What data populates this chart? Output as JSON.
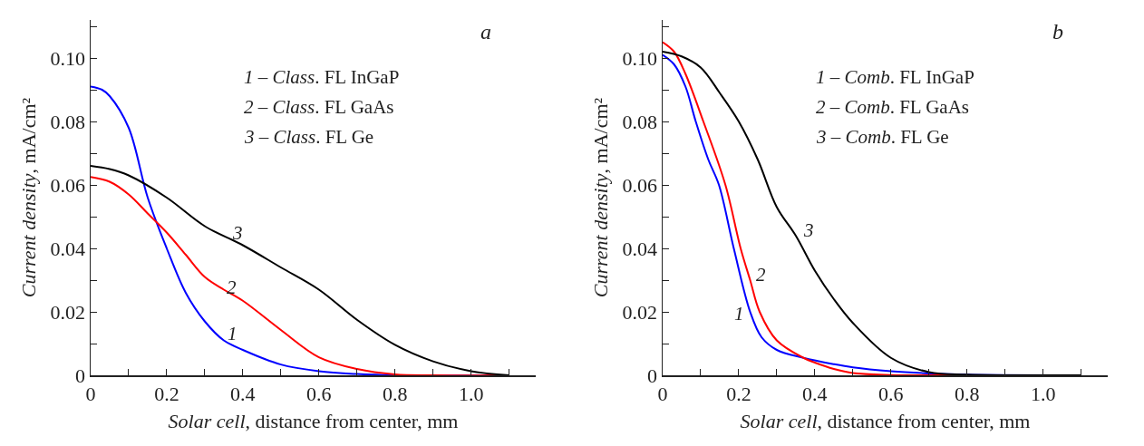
{
  "chart_data": [
    {
      "type": "line",
      "title": "a",
      "xlabel": "Solar cell, distance from center, mm",
      "ylabel": "Current density, mA/cm²",
      "xlim": [
        0,
        1.17
      ],
      "ylim": [
        0,
        0.112
      ],
      "xticks": [
        0,
        {
          "value": 0.1,
          "label": null
        },
        0.2,
        {
          "value": 0.3,
          "label": null
        },
        0.4,
        {
          "value": 0.5,
          "label": null
        },
        0.6,
        {
          "value": 0.7,
          "label": null
        },
        0.8,
        {
          "value": 0.9,
          "label": null
        },
        {
          "value": 1,
          "label": "1.0"
        },
        {
          "value": 1.1,
          "label": null
        }
      ],
      "yticks": [
        0,
        {
          "value": 0.01,
          "label": null
        },
        0.02,
        {
          "value": 0.03,
          "label": null
        },
        0.04,
        {
          "value": 0.05,
          "label": null
        },
        0.06,
        {
          "value": 0.07,
          "label": null
        },
        0.08,
        {
          "value": 0.09,
          "label": null
        },
        {
          "value": 0.1,
          "label": "0.10"
        },
        {
          "value": 0.11,
          "label": null
        }
      ],
      "grid": false,
      "marker": "none",
      "line_style": "solid",
      "series": [
        {
          "color": "#0000ff",
          "x": [
            0,
            0.03,
            0.05,
            0.1,
            0.15,
            0.2,
            0.25,
            0.3,
            0.35,
            0.4,
            0.5,
            0.6,
            0.7,
            0.8,
            1.1
          ],
          "values": [
            0.091,
            0.09,
            0.088,
            0.078,
            0.056,
            0.04,
            0.026,
            0.017,
            0.011,
            0.008,
            0.0034,
            0.0013,
            0.0004,
            0,
            0
          ]
        },
        {
          "color": "#ff0000",
          "x": [
            0,
            0.05,
            0.1,
            0.15,
            0.2,
            0.25,
            0.3,
            0.35,
            0.4,
            0.5,
            0.6,
            0.7,
            0.8,
            0.9,
            1.1
          ],
          "values": [
            0.0625,
            0.061,
            0.057,
            0.051,
            0.045,
            0.038,
            0.031,
            0.027,
            0.0235,
            0.0143,
            0.0057,
            0.002,
            0.0003,
            0,
            0
          ]
        },
        {
          "color": "#000000",
          "x": [
            0,
            0.05,
            0.1,
            0.2,
            0.3,
            0.4,
            0.5,
            0.6,
            0.7,
            0.8,
            0.9,
            1.0,
            1.1
          ],
          "values": [
            0.066,
            0.065,
            0.063,
            0.056,
            0.047,
            0.041,
            0.034,
            0.027,
            0.0175,
            0.0096,
            0.0044,
            0.0013,
            0
          ]
        }
      ],
      "annotations": [
        "1 – Class. FL InGaP",
        "2 – Class. FL GaAs",
        "3 – Class. FL Ge",
        {
          "text": "1",
          "x": 0.35,
          "y": 0.011
        },
        {
          "text": "2",
          "x": 0.4,
          "y": 0.0235
        },
        {
          "text": "3",
          "x": 0.4,
          "y": 0.041
        }
      ]
    },
    {
      "type": "line",
      "title": "b",
      "xlabel": "Solar cell, distance from center, mm",
      "ylabel": "Current density, mA/cm²",
      "xlim": [
        0,
        1.17
      ],
      "ylim": [
        0,
        0.112
      ],
      "xticks": [
        0,
        {
          "value": 0.1,
          "label": null
        },
        0.2,
        {
          "value": 0.3,
          "label": null
        },
        0.4,
        {
          "value": 0.5,
          "label": null
        },
        0.6,
        {
          "value": 0.7,
          "label": null
        },
        0.8,
        {
          "value": 0.9,
          "label": null
        },
        {
          "value": 1,
          "label": "1.0"
        },
        {
          "value": 1.1,
          "label": null
        }
      ],
      "yticks": [
        0,
        {
          "value": 0.01,
          "label": null
        },
        0.02,
        {
          "value": 0.03,
          "label": null
        },
        0.04,
        {
          "value": 0.05,
          "label": null
        },
        0.06,
        {
          "value": 0.07,
          "label": null
        },
        0.08,
        {
          "value": 0.09,
          "label": null
        },
        {
          "value": 0.1,
          "label": "0.10"
        },
        {
          "value": 0.11,
          "label": null
        }
      ],
      "grid": false,
      "marker": "none",
      "line_style": "solid",
      "series": [
        {
          "color": "#0000ff",
          "x": [
            0,
            0.03,
            0.06,
            0.087,
            0.12,
            0.148,
            0.187,
            0.23,
            0.26,
            0.3,
            0.37,
            0.45,
            0.5,
            0.6,
            0.7,
            0.8,
            1.1
          ],
          "values": [
            0.101,
            0.098,
            0.091,
            0.08,
            0.068,
            0.06,
            0.04,
            0.02,
            0.012,
            0.008,
            0.0055,
            0.0035,
            0.0025,
            0.0013,
            0.0006,
            0.0002,
            0
          ]
        },
        {
          "color": "#ff0000",
          "x": [
            0,
            0.03,
            0.06,
            0.107,
            0.165,
            0.205,
            0.23,
            0.255,
            0.3,
            0.37,
            0.4,
            0.45,
            0.5,
            0.6,
            0.7,
            1.1
          ],
          "values": [
            0.105,
            0.102,
            0.095,
            0.08,
            0.06,
            0.04,
            0.03,
            0.02,
            0.011,
            0.0055,
            0.004,
            0.002,
            0.0007,
            0.0001,
            0,
            0
          ]
        },
        {
          "color": "#000000",
          "x": [
            0,
            0.05,
            0.1,
            0.15,
            0.2,
            0.25,
            0.3,
            0.35,
            0.4,
            0.45,
            0.5,
            0.6,
            0.7,
            0.8,
            1.1
          ],
          "values": [
            0.102,
            0.1005,
            0.097,
            0.089,
            0.08,
            0.068,
            0.053,
            0.044,
            0.033,
            0.024,
            0.0165,
            0.0055,
            0.001,
            0.0002,
            0
          ]
        }
      ],
      "annotations": [
        "1 – Comb. FL InGaP",
        "2 – Comb. FL GaAs",
        "3 – Comb. FL Ge",
        {
          "text": "1",
          "x": 0.23,
          "y": 0.02
        },
        {
          "text": "2",
          "x": 0.23,
          "y": 0.03
        },
        {
          "text": "3",
          "x": 0.35,
          "y": 0.044
        }
      ]
    }
  ]
}
